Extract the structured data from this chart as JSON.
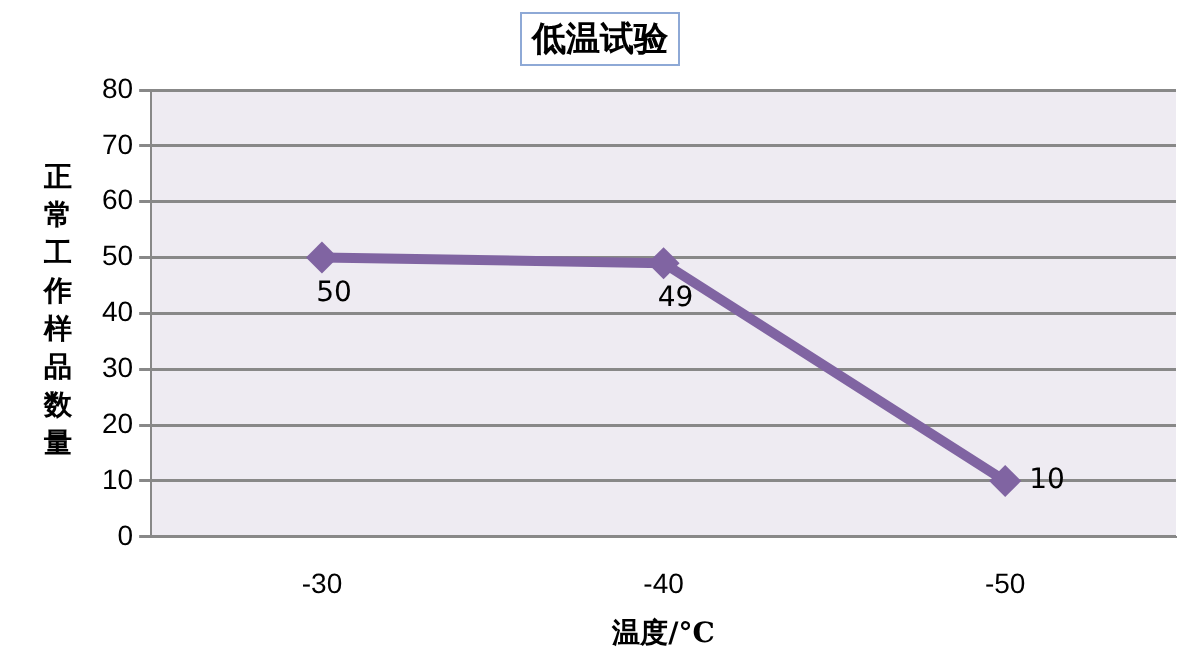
{
  "chart_data": {
    "type": "line",
    "title": "低温试验",
    "xlabel": "温度/°C",
    "ylabel": "正常工作样品数量",
    "categories": [
      "-30",
      "-40",
      "-50"
    ],
    "series": [
      {
        "color": "#8064a2",
        "values": [
          50,
          49,
          10
        ]
      }
    ],
    "ylim": [
      0,
      80
    ],
    "yticks": [
      0,
      10,
      20,
      30,
      40,
      50,
      60,
      70,
      80
    ],
    "grid": "y",
    "legend": false,
    "marker": "diamond",
    "line_style": "solid",
    "data_labels": true
  }
}
